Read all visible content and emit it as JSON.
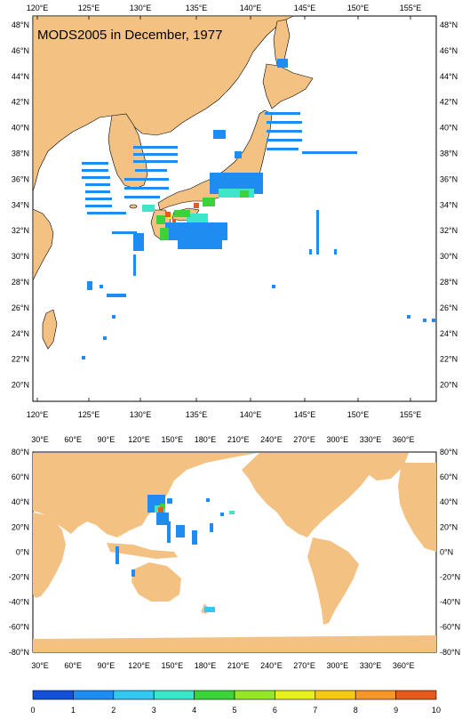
{
  "top_map": {
    "title": "MODS2005 in December, 1977",
    "lon_labels": [
      "120°E",
      "125°E",
      "130°E",
      "135°E",
      "140°E",
      "145°E",
      "150°E",
      "155°E"
    ],
    "lat_labels": [
      "48°N",
      "46°N",
      "44°N",
      "42°N",
      "40°N",
      "38°N",
      "36°N",
      "34°N",
      "32°N",
      "30°N",
      "28°N",
      "26°N",
      "24°N",
      "22°N",
      "20°N"
    ]
  },
  "bottom_map": {
    "lon_labels": [
      "30°E",
      "60°E",
      "90°E",
      "120°E",
      "150°E",
      "180°E",
      "210°E",
      "240°E",
      "270°E",
      "300°E",
      "330°E",
      "360°E"
    ],
    "lat_labels": [
      "80°N",
      "60°N",
      "40°N",
      "20°N",
      "0°N",
      "-20°N",
      "-40°N",
      "-60°N",
      "-80°N"
    ]
  },
  "colorbar": {
    "labels": [
      "0",
      "1",
      "2",
      "3",
      "4",
      "5",
      "6",
      "7",
      "8",
      "9",
      "10"
    ],
    "colors": [
      "#1450d8",
      "#1e8cf0",
      "#32c8f0",
      "#3ce6c8",
      "#3cd23c",
      "#96e628",
      "#e6f01e",
      "#f5c814",
      "#f59628",
      "#e65a1e"
    ]
  },
  "colors": {
    "land": "#f3c283",
    "ocean": "#ffffff"
  }
}
